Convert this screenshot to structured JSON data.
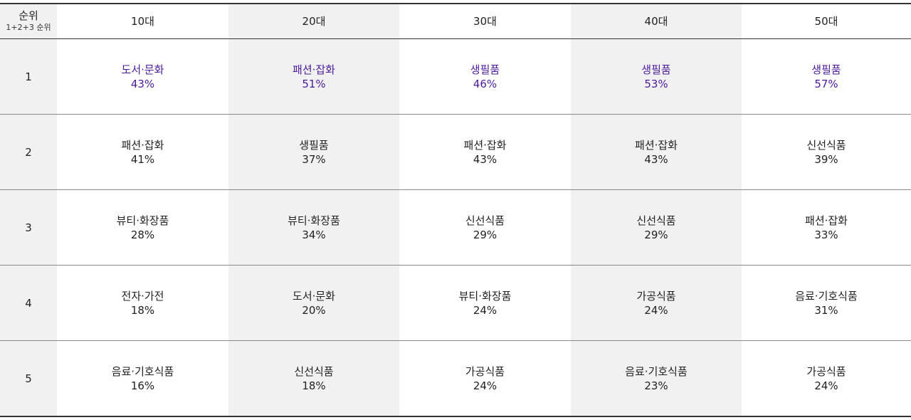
{
  "header": {
    "rank_label": "순위",
    "rank_sublabel": "1+2+3 순위",
    "age_groups": [
      "10대",
      "20대",
      "30대",
      "40대",
      "50대"
    ]
  },
  "rows": [
    {
      "rank": "1",
      "cells": [
        {
          "category": "도서·문화",
          "percent": "43%"
        },
        {
          "category": "패션·잡화",
          "percent": "51%"
        },
        {
          "category": "생필품",
          "percent": "46%"
        },
        {
          "category": "생필품",
          "percent": "53%"
        },
        {
          "category": "생필품",
          "percent": "57%"
        }
      ]
    },
    {
      "rank": "2",
      "cells": [
        {
          "category": "패션·잡화",
          "percent": "41%"
        },
        {
          "category": "생필품",
          "percent": "37%"
        },
        {
          "category": "패션·잡화",
          "percent": "43%"
        },
        {
          "category": "패션·잡화",
          "percent": "43%"
        },
        {
          "category": "신선식품",
          "percent": "39%"
        }
      ]
    },
    {
      "rank": "3",
      "cells": [
        {
          "category": "뷰티·화장품",
          "percent": "28%"
        },
        {
          "category": "뷰티·화장품",
          "percent": "34%"
        },
        {
          "category": "신선식품",
          "percent": "29%"
        },
        {
          "category": "신선식품",
          "percent": "29%"
        },
        {
          "category": "패션·잡화",
          "percent": "33%"
        }
      ]
    },
    {
      "rank": "4",
      "cells": [
        {
          "category": "전자·가전",
          "percent": "18%"
        },
        {
          "category": "도서·문화",
          "percent": "20%"
        },
        {
          "category": "뷰티·화장품",
          "percent": "24%"
        },
        {
          "category": "가공식품",
          "percent": "24%"
        },
        {
          "category": "음료·기호식품",
          "percent": "31%"
        }
      ]
    },
    {
      "rank": "5",
      "cells": [
        {
          "category": "음료·기호식품",
          "percent": "16%"
        },
        {
          "category": "신선식품",
          "percent": "18%"
        },
        {
          "category": "가공식품",
          "percent": "24%"
        },
        {
          "category": "음료·기호식품",
          "percent": "23%"
        },
        {
          "category": "가공식품",
          "percent": "24%"
        }
      ]
    }
  ],
  "colors": {
    "highlight_text": "#4b1a9c",
    "shaded_column": "#f1f1f1",
    "rule": "#333333"
  }
}
